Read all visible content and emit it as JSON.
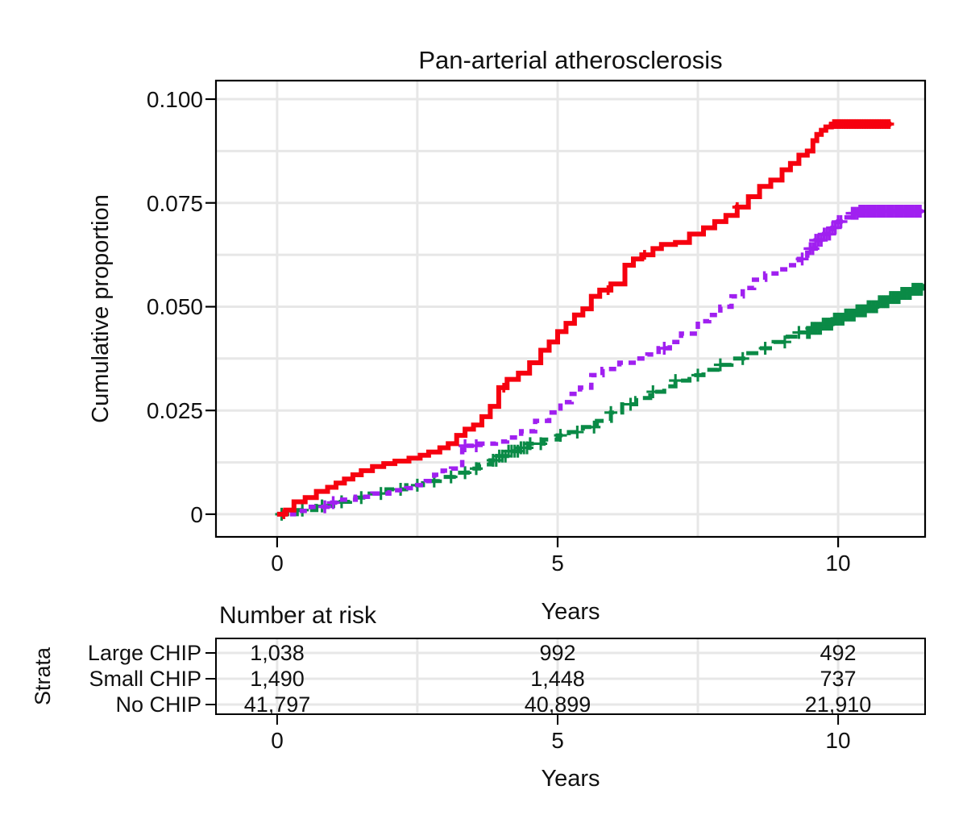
{
  "title": "Pan-arterial atherosclerosis",
  "axes": {
    "y_label": "Cumulative proportion",
    "x_label": "Years",
    "y_ticks": [
      "0.100",
      "0.075",
      "0.050",
      "0.025",
      "0"
    ],
    "x_ticks": [
      "0",
      "5",
      "10"
    ]
  },
  "risk_table": {
    "header": "Number at risk",
    "strata_label": "Strata",
    "x_label": "Years",
    "x_ticks": [
      "0",
      "5",
      "10"
    ],
    "rows": [
      {
        "label": "Large CHIP",
        "color": "#f6010f",
        "counts": [
          "1,038",
          "992",
          "492"
        ]
      },
      {
        "label": "Small CHIP",
        "color": "#a020f0",
        "counts": [
          "1,490",
          "1,448",
          "737"
        ]
      },
      {
        "label": "No CHIP",
        "color": "#0a8a46",
        "counts": [
          "41,797",
          "40,899",
          "21,910"
        ]
      }
    ]
  },
  "chart_data": {
    "type": "line",
    "subtype": "step-cumulative-incidence",
    "title": "Pan-arterial atherosclerosis",
    "xlabel": "Years",
    "ylabel": "Cumulative proportion",
    "x_domain": [
      -1.09,
      11.55
    ],
    "y_domain": [
      -0.00545,
      0.10447
    ],
    "x_major_ticks": [
      0,
      5,
      10
    ],
    "y_major_ticks": [
      0.1,
      0.075,
      0.05,
      0.025,
      0
    ],
    "x_gridlines": [
      0,
      2.5,
      5,
      7.5,
      10
    ],
    "y_gridlines": [
      0,
      0.0125,
      0.025,
      0.0375,
      0.05,
      0.0625,
      0.075,
      0.0875,
      0.1
    ],
    "grid_color": "#e7e7e7",
    "legend_position": "risk-table",
    "series": [
      {
        "name": "No CHIP",
        "color": "#0a8a46",
        "dash": "15 8",
        "width": 5,
        "censor_size": 8,
        "end": 11.55,
        "points": [
          [
            0,
            0
          ],
          [
            0.35,
            0.001
          ],
          [
            0.7,
            0.002
          ],
          [
            1.0,
            0.003
          ],
          [
            1.3,
            0.004
          ],
          [
            1.6,
            0.005
          ],
          [
            1.95,
            0.006
          ],
          [
            2.3,
            0.007
          ],
          [
            2.6,
            0.008
          ],
          [
            2.9,
            0.009
          ],
          [
            3.15,
            0.01
          ],
          [
            3.4,
            0.011
          ],
          [
            3.6,
            0.012
          ],
          [
            3.8,
            0.013
          ],
          [
            3.95,
            0.014
          ],
          [
            4.1,
            0.0152
          ],
          [
            4.3,
            0.016
          ],
          [
            4.5,
            0.017
          ],
          [
            4.75,
            0.018
          ],
          [
            5.0,
            0.019
          ],
          [
            5.2,
            0.0198
          ],
          [
            5.45,
            0.021
          ],
          [
            5.7,
            0.0225
          ],
          [
            5.95,
            0.0245
          ],
          [
            6.15,
            0.0265
          ],
          [
            6.4,
            0.028
          ],
          [
            6.65,
            0.0295
          ],
          [
            6.9,
            0.0308
          ],
          [
            7.1,
            0.0322
          ],
          [
            7.35,
            0.0335
          ],
          [
            7.6,
            0.0348
          ],
          [
            7.85,
            0.036
          ],
          [
            8.1,
            0.0375
          ],
          [
            8.35,
            0.0388
          ],
          [
            8.6,
            0.04
          ],
          [
            8.85,
            0.0415
          ],
          [
            9.1,
            0.0428
          ],
          [
            9.3,
            0.0438
          ],
          [
            9.5,
            0.0448
          ],
          [
            9.7,
            0.0458
          ],
          [
            9.9,
            0.047
          ],
          [
            10.1,
            0.048
          ],
          [
            10.3,
            0.049
          ],
          [
            10.5,
            0.05
          ],
          [
            10.7,
            0.0512
          ],
          [
            10.9,
            0.0522
          ],
          [
            11.1,
            0.0532
          ],
          [
            11.3,
            0.0542
          ],
          [
            11.5,
            0.055
          ]
        ],
        "censor_singles": [
          0.08,
          0.45,
          0.8,
          1.15,
          1.5,
          1.85,
          2.2,
          2.5,
          2.8,
          3.1,
          3.35,
          3.55,
          4.7,
          5.05,
          5.35,
          5.65,
          5.95,
          6.3,
          6.7,
          7.1,
          7.5,
          7.9,
          8.3,
          8.7,
          9.05,
          9.3
        ],
        "censor_clusters": [
          {
            "from": 3.85,
            "to": 4.55,
            "step": 0.055
          },
          {
            "from": 9.45,
            "to": 11.5,
            "step": 0.04
          }
        ]
      },
      {
        "name": "Small CHIP",
        "color": "#a020f0",
        "dash": "9 7",
        "width": 5.5,
        "censor_size": 8,
        "end": 11.55,
        "points": [
          [
            0,
            0
          ],
          [
            0.3,
            0.0008
          ],
          [
            0.6,
            0.0018
          ],
          [
            0.9,
            0.0028
          ],
          [
            1.1,
            0.0035
          ],
          [
            1.4,
            0.0042
          ],
          [
            1.7,
            0.005
          ],
          [
            2.0,
            0.0058
          ],
          [
            2.3,
            0.0063
          ],
          [
            2.5,
            0.007
          ],
          [
            2.65,
            0.008
          ],
          [
            2.8,
            0.0095
          ],
          [
            2.95,
            0.0105
          ],
          [
            3.1,
            0.011
          ],
          [
            3.3,
            0.0165
          ],
          [
            3.6,
            0.017
          ],
          [
            3.9,
            0.0175
          ],
          [
            4.1,
            0.0185
          ],
          [
            4.35,
            0.02
          ],
          [
            4.6,
            0.0225
          ],
          [
            4.85,
            0.0245
          ],
          [
            5.05,
            0.027
          ],
          [
            5.25,
            0.029
          ],
          [
            5.4,
            0.0305
          ],
          [
            5.6,
            0.0335
          ],
          [
            5.8,
            0.035
          ],
          [
            6.1,
            0.0365
          ],
          [
            6.4,
            0.0375
          ],
          [
            6.6,
            0.0385
          ],
          [
            6.8,
            0.04
          ],
          [
            7.0,
            0.0415
          ],
          [
            7.2,
            0.0435
          ],
          [
            7.5,
            0.0465
          ],
          [
            7.7,
            0.048
          ],
          [
            7.9,
            0.05
          ],
          [
            8.1,
            0.0525
          ],
          [
            8.3,
            0.0545
          ],
          [
            8.5,
            0.0565
          ],
          [
            8.7,
            0.058
          ],
          [
            8.9,
            0.059
          ],
          [
            9.1,
            0.06
          ],
          [
            9.3,
            0.0615
          ],
          [
            9.45,
            0.064
          ],
          [
            9.6,
            0.066
          ],
          [
            9.75,
            0.0675
          ],
          [
            9.9,
            0.069
          ],
          [
            10.0,
            0.0705
          ],
          [
            10.1,
            0.0715
          ],
          [
            10.2,
            0.0725
          ],
          [
            10.35,
            0.073
          ]
        ],
        "censor_singles": [
          0.85,
          1.0,
          3.35,
          3.55,
          6.9,
          9.36
        ],
        "censor_clusters": [
          {
            "from": 9.5,
            "to": 10.08,
            "step": 0.05
          },
          {
            "from": 10.25,
            "to": 11.5,
            "step": 0.045
          }
        ]
      },
      {
        "name": "Large CHIP",
        "color": "#f6010f",
        "dash": "solid",
        "width": 6,
        "censor_size": 6,
        "end": 10.95,
        "points": [
          [
            0,
            0
          ],
          [
            0.15,
            0.001
          ],
          [
            0.3,
            0.003
          ],
          [
            0.5,
            0.004
          ],
          [
            0.7,
            0.0055
          ],
          [
            0.9,
            0.0065
          ],
          [
            1.05,
            0.0075
          ],
          [
            1.2,
            0.0085
          ],
          [
            1.35,
            0.0095
          ],
          [
            1.5,
            0.0105
          ],
          [
            1.7,
            0.0115
          ],
          [
            1.9,
            0.0122
          ],
          [
            2.1,
            0.0128
          ],
          [
            2.35,
            0.0135
          ],
          [
            2.55,
            0.0142
          ],
          [
            2.7,
            0.015
          ],
          [
            2.9,
            0.016
          ],
          [
            3.05,
            0.017
          ],
          [
            3.2,
            0.019
          ],
          [
            3.35,
            0.0205
          ],
          [
            3.5,
            0.0215
          ],
          [
            3.65,
            0.0235
          ],
          [
            3.8,
            0.026
          ],
          [
            3.95,
            0.0305
          ],
          [
            4.1,
            0.0325
          ],
          [
            4.3,
            0.034
          ],
          [
            4.5,
            0.0365
          ],
          [
            4.7,
            0.0395
          ],
          [
            4.85,
            0.0415
          ],
          [
            5.0,
            0.044
          ],
          [
            5.15,
            0.046
          ],
          [
            5.3,
            0.048
          ],
          [
            5.45,
            0.0495
          ],
          [
            5.6,
            0.0525
          ],
          [
            5.75,
            0.054
          ],
          [
            5.95,
            0.0555
          ],
          [
            6.2,
            0.06
          ],
          [
            6.35,
            0.0615
          ],
          [
            6.5,
            0.0625
          ],
          [
            6.7,
            0.064
          ],
          [
            6.85,
            0.065
          ],
          [
            7.1,
            0.0655
          ],
          [
            7.35,
            0.0675
          ],
          [
            7.6,
            0.069
          ],
          [
            7.8,
            0.0705
          ],
          [
            8.0,
            0.072
          ],
          [
            8.2,
            0.074
          ],
          [
            8.4,
            0.0765
          ],
          [
            8.6,
            0.079
          ],
          [
            8.8,
            0.0805
          ],
          [
            9.0,
            0.083
          ],
          [
            9.15,
            0.0845
          ],
          [
            9.3,
            0.0865
          ],
          [
            9.45,
            0.0875
          ],
          [
            9.55,
            0.09
          ],
          [
            9.62,
            0.0915
          ],
          [
            9.7,
            0.0925
          ],
          [
            9.78,
            0.0933
          ],
          [
            9.88,
            0.094
          ]
        ],
        "censor_singles": [
          0.12,
          4.04,
          5.9,
          6.55,
          8.2
        ],
        "censor_clusters": [
          {
            "from": 9.92,
            "to": 10.92,
            "step": 0.045
          }
        ]
      }
    ]
  }
}
